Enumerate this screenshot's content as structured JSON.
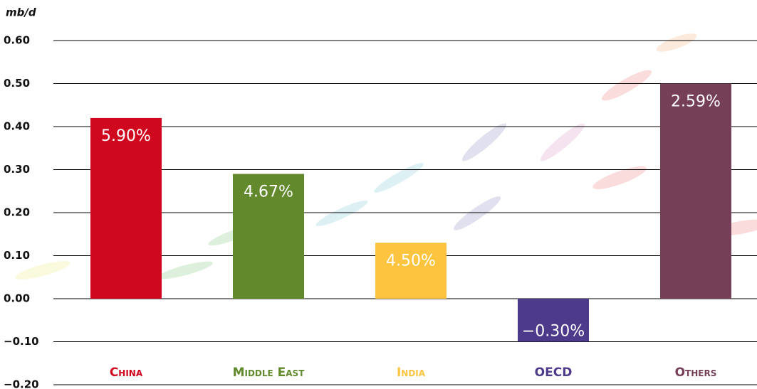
{
  "chart_data": {
    "type": "bar",
    "y_axis_label": "mb/d",
    "categories": [
      "China",
      "Middle East",
      "India",
      "OECD",
      "Others"
    ],
    "values": [
      0.42,
      0.29,
      0.13,
      -0.1,
      0.5
    ],
    "annotations": [
      "5.90%",
      "4.67%",
      "4.50%",
      "−0.30%",
      "2.59%"
    ],
    "colors": [
      "#d0081f",
      "#628a2c",
      "#fcc43f",
      "#4d3a8a",
      "#763f58"
    ],
    "ylim": [
      -0.2,
      0.6
    ],
    "yticks": [
      {
        "value": -0.2,
        "label": "−0.20"
      },
      {
        "value": -0.1,
        "label": "−0.10"
      },
      {
        "value": 0,
        "label": "0.00"
      },
      {
        "value": 0.1,
        "label": "0.10"
      },
      {
        "value": 0.2,
        "label": "0.20"
      },
      {
        "value": 0.3,
        "label": "0.30"
      },
      {
        "value": 0.4,
        "label": "0.40"
      },
      {
        "value": 0.5,
        "label": "0.50"
      },
      {
        "value": 0.6,
        "label": "0.60"
      }
    ],
    "grid": true
  }
}
